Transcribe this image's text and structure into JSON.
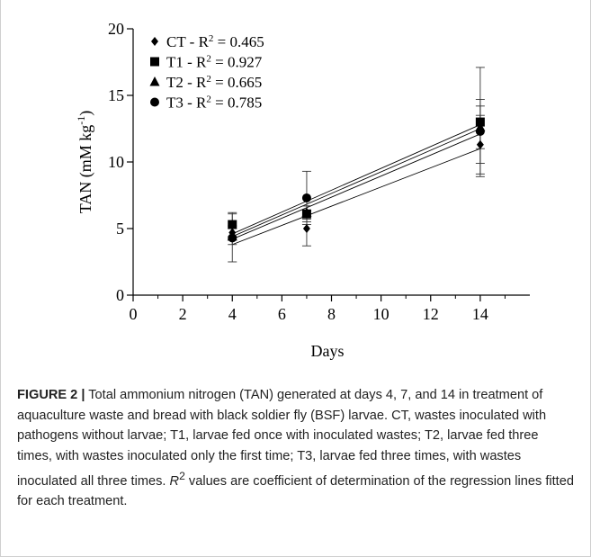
{
  "chart_data": {
    "type": "scatter",
    "xlabel": "Days",
    "ylabel": "TAN (mM kg",
    "ylabel_sup": "-1",
    "ylabel_close": ")",
    "xlim": [
      0,
      16
    ],
    "ylim": [
      0,
      20
    ],
    "x_ticks": [
      "0",
      "2",
      "4",
      "6",
      "8",
      "10",
      "12",
      "14"
    ],
    "y_ticks": [
      "0",
      "5",
      "10",
      "15",
      "20"
    ],
    "grid": false,
    "legend_position": "top-left",
    "series": [
      {
        "name": "CT",
        "marker": "diamond",
        "r2_label": "CT - R",
        "r2_value": " = 0.465",
        "x": [
          4,
          7,
          14
        ],
        "y": [
          4.7,
          5.0,
          11.3
        ],
        "err": [
          0.5,
          1.3,
          2.2
        ],
        "fit": [
          [
            4,
            3.8
          ],
          [
            14,
            11.0
          ]
        ]
      },
      {
        "name": "T1",
        "marker": "square",
        "r2_label": "T1 - R",
        "r2_value": " = 0.927",
        "x": [
          4,
          7,
          14
        ],
        "y": [
          5.3,
          6.1,
          13.0
        ],
        "err": [
          0.9,
          0.6,
          4.1
        ],
        "fit": [
          [
            4,
            4.6
          ],
          [
            14,
            12.8
          ]
        ]
      },
      {
        "name": "T2",
        "marker": "triangle",
        "r2_label": "T2 - R",
        "r2_value": " = 0.665",
        "x": [
          4,
          7,
          14
        ],
        "y": [
          4.4,
          6.2,
          12.6
        ],
        "err": [
          0.6,
          0.5,
          1.6
        ],
        "fit": [
          [
            4,
            4.4
          ],
          [
            14,
            12.5
          ]
        ]
      },
      {
        "name": "T3",
        "marker": "circle",
        "r2_label": "T3 - R",
        "r2_value": " = 0.785",
        "x": [
          4,
          7,
          14
        ],
        "y": [
          4.3,
          7.3,
          12.3
        ],
        "err": [
          1.8,
          2.0,
          2.4
        ],
        "fit": [
          [
            4,
            4.2
          ],
          [
            14,
            12.1
          ]
        ]
      }
    ]
  },
  "caption": {
    "label": "FIGURE 2 |",
    "text_1": " Total ammonium nitrogen (TAN) generated at days 4, 7, and 14 in treatment of aquaculture waste and bread with black soldier fly (BSF) larvae. CT, wastes inoculated with pathogens without larvae; T1, larvae fed once with inoculated wastes; T2, larvae fed three times, with wastes inoculated only the first time; T3, larvae fed three times, with wastes inoculated all three times. ",
    "r_symbol": "R",
    "r_sup": "2",
    "text_2": " values are coefficient of determination of the regression lines fitted for each treatment."
  }
}
